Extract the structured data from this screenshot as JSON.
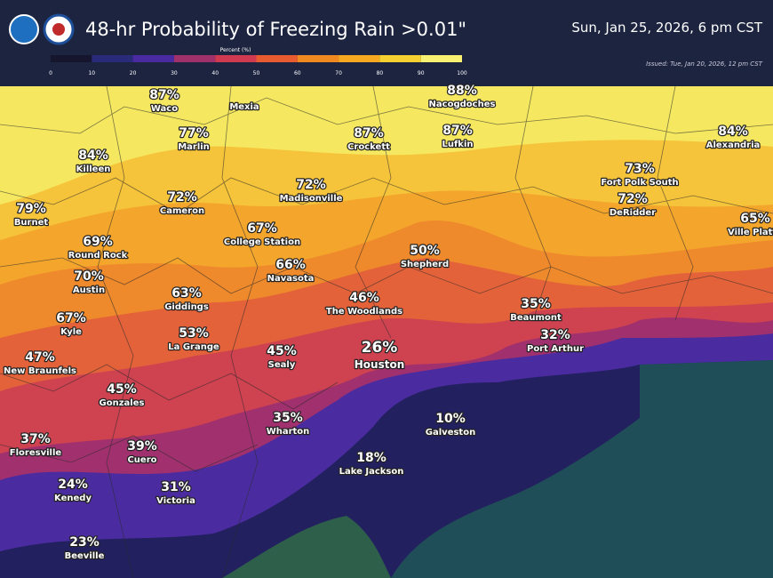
{
  "header": {
    "title": "48-hr Probability of Freezing Rain >0.01\"",
    "valid_time": "Sun, Jan 25, 2026, 6 pm CST",
    "issued": "Issued: Tue, Jan 20, 2026, 12 pm CST",
    "legend": {
      "title": "Percent (%)",
      "ticks": [
        "0",
        "10",
        "20",
        "30",
        "40",
        "50",
        "60",
        "70",
        "80",
        "90",
        "100"
      ]
    }
  },
  "cities": [
    {
      "percent": "87%",
      "name": "Waco"
    },
    {
      "name": "Mexia"
    },
    {
      "percent": "88%",
      "name": "Nacogdoches"
    },
    {
      "percent": "77%",
      "name": "Marlin"
    },
    {
      "percent": "87%",
      "name": "Crockett"
    },
    {
      "percent": "87%",
      "name": "Lufkin"
    },
    {
      "percent": "84%",
      "name": "Alexandria"
    },
    {
      "percent": "84%",
      "name": "Killeen"
    },
    {
      "percent": "73%",
      "name": "Fort Polk South"
    },
    {
      "percent": "72%",
      "name": "Cameron"
    },
    {
      "percent": "72%",
      "name": "Madisonville"
    },
    {
      "percent": "72%",
      "name": "DeRidder"
    },
    {
      "percent": "79%",
      "name": "Burnet"
    },
    {
      "percent": "65%",
      "name": "Ville Platte"
    },
    {
      "percent": "67%",
      "name": "College Station"
    },
    {
      "percent": "69%",
      "name": "Round Rock"
    },
    {
      "percent": "50%",
      "name": "Shepherd"
    },
    {
      "percent": "70%",
      "name": "Austin"
    },
    {
      "percent": "66%",
      "name": "Navasota"
    },
    {
      "percent": "63%",
      "name": "Giddings"
    },
    {
      "percent": "46%",
      "name": "The Woodlands"
    },
    {
      "percent": "35%",
      "name": "Beaumont"
    },
    {
      "percent": "67%",
      "name": "Kyle"
    },
    {
      "percent": "53%",
      "name": "La Grange"
    },
    {
      "percent": "32%",
      "name": "Port Arthur"
    },
    {
      "percent": "26%",
      "name": "Houston"
    },
    {
      "percent": "45%",
      "name": "Sealy"
    },
    {
      "percent": "47%",
      "name": "New Braunfels"
    },
    {
      "percent": "45%",
      "name": "Gonzales"
    },
    {
      "percent": "35%",
      "name": "Wharton"
    },
    {
      "percent": "10%",
      "name": "Galveston"
    },
    {
      "percent": "37%",
      "name": "Floresville"
    },
    {
      "percent": "39%",
      "name": "Cuero"
    },
    {
      "percent": "18%",
      "name": "Lake Jackson"
    },
    {
      "percent": "24%",
      "name": "Kenedy"
    },
    {
      "percent": "31%",
      "name": "Victoria"
    },
    {
      "percent": "23%",
      "name": "Beeville"
    }
  ]
}
